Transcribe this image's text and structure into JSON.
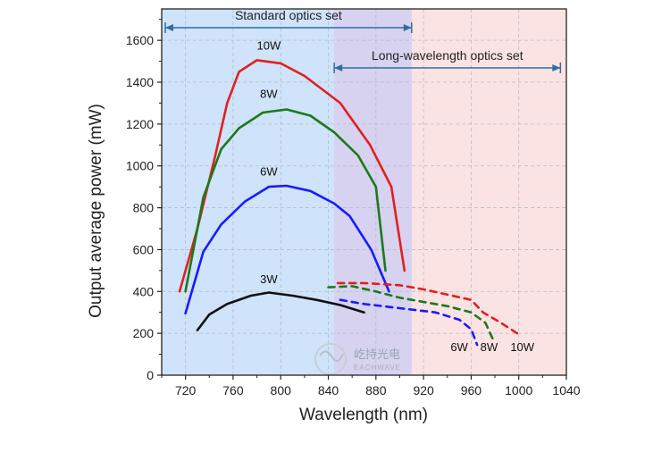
{
  "chart_data": {
    "type": "line",
    "xlabel": "Wavelength (nm)",
    "ylabel": "Output average power (mW)",
    "xlim": [
      700,
      1040
    ],
    "ylim": [
      0,
      1750
    ],
    "xticks": [
      720,
      760,
      800,
      840,
      880,
      920,
      960,
      1000,
      1040
    ],
    "yticks": [
      0,
      200,
      400,
      600,
      800,
      1000,
      1200,
      1400,
      1600
    ],
    "grid": true,
    "legend": "none",
    "regions": [
      {
        "label": "Standard optics set",
        "x_range": [
          703,
          910
        ],
        "color": "#cfe3fa"
      },
      {
        "label": "Long-wavelength optics set",
        "x_range": [
          845,
          1035
        ],
        "color": "#fbe3e3"
      }
    ],
    "series": [
      {
        "name": "10W",
        "color": "#e02020",
        "style": "solid",
        "x": [
          715,
          730,
          745,
          755,
          765,
          780,
          800,
          820,
          850,
          875,
          893,
          904
        ],
        "y": [
          400,
          700,
          1050,
          1300,
          1450,
          1505,
          1490,
          1430,
          1300,
          1100,
          900,
          500
        ]
      },
      {
        "name": "8W",
        "color": "#1a7a1a",
        "style": "solid",
        "x": [
          720,
          735,
          750,
          765,
          785,
          805,
          825,
          845,
          865,
          880,
          888
        ],
        "y": [
          400,
          850,
          1080,
          1180,
          1255,
          1270,
          1240,
          1160,
          1050,
          900,
          500
        ]
      },
      {
        "name": "6W",
        "color": "#1a1aff",
        "style": "solid",
        "x": [
          720,
          735,
          750,
          770,
          790,
          805,
          825,
          845,
          858,
          876,
          891
        ],
        "y": [
          295,
          590,
          720,
          830,
          900,
          905,
          880,
          820,
          760,
          600,
          400
        ]
      },
      {
        "name": "3W",
        "color": "#111111",
        "style": "solid",
        "x": [
          730,
          740,
          755,
          775,
          790,
          810,
          830,
          850,
          870
        ],
        "y": [
          215,
          290,
          340,
          380,
          395,
          380,
          360,
          335,
          300
        ]
      },
      {
        "name": "10W",
        "color": "#e02020",
        "style": "dashed",
        "x": [
          848,
          870,
          900,
          920,
          960,
          970,
          985,
          1000
        ],
        "y": [
          440,
          440,
          430,
          410,
          360,
          300,
          250,
          195
        ]
      },
      {
        "name": "8W",
        "color": "#1a7a1a",
        "style": "dashed",
        "x": [
          840,
          860,
          880,
          900,
          940,
          960,
          972,
          978
        ],
        "y": [
          420,
          425,
          400,
          370,
          330,
          300,
          250,
          175
        ]
      },
      {
        "name": "6W",
        "color": "#1a1aff",
        "style": "dashed",
        "x": [
          850,
          870,
          900,
          930,
          950,
          960,
          965
        ],
        "y": [
          360,
          340,
          320,
          300,
          265,
          220,
          145
        ]
      }
    ],
    "annotations": [
      {
        "text": "10W",
        "x": 790,
        "y": 1555
      },
      {
        "text": "8W",
        "x": 790,
        "y": 1325
      },
      {
        "text": "6W",
        "x": 790,
        "y": 955
      },
      {
        "text": "3W",
        "x": 790,
        "y": 440
      },
      {
        "text": "6W",
        "x": 950,
        "y": 115
      },
      {
        "text": "8W",
        "x": 975,
        "y": 115
      },
      {
        "text": "10W",
        "x": 1003,
        "y": 115
      }
    ]
  },
  "watermark": {
    "brand": "屹持光电",
    "sub": "EACHWAVE"
  }
}
